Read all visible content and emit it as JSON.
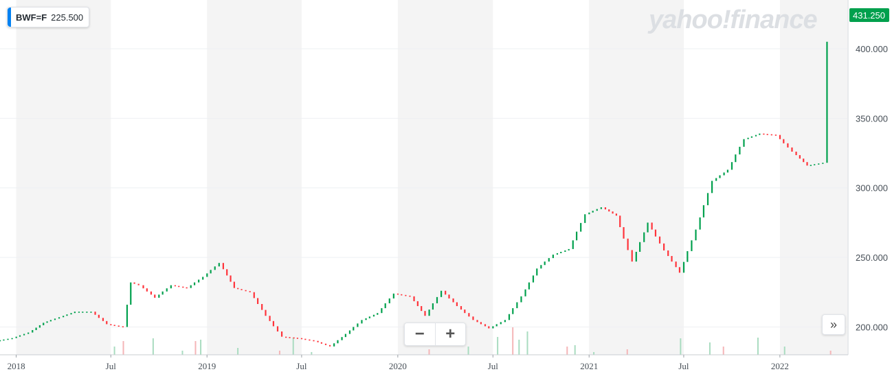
{
  "ticker": {
    "symbol": "BWF=F",
    "value": "225.500"
  },
  "watermark": "yahoo!finance",
  "last_price_label": "431.250",
  "zoom": {
    "minus": "−",
    "plus": "+"
  },
  "scroll_icon": "»",
  "colors": {
    "up": "#00a04d",
    "down": "#ff333a",
    "grid": "#eef0f3",
    "band": "#f4f4f4",
    "accent": "#0081f2"
  },
  "chart_data": {
    "type": "candlestick",
    "ylim": [
      180,
      435
    ],
    "yticks": [
      200,
      250,
      300,
      350,
      400
    ],
    "ytick_labels": [
      "200.000",
      "250.000",
      "300.000",
      "350.000",
      "400.000"
    ],
    "x_start": "2017-12-01",
    "x_end": "2022-05-10",
    "xticks": [
      {
        "date": "2018-01-01",
        "label": "2018"
      },
      {
        "date": "2018-07-01",
        "label": "Jul"
      },
      {
        "date": "2019-01-01",
        "label": "2019"
      },
      {
        "date": "2019-07-01",
        "label": "Jul"
      },
      {
        "date": "2020-01-01",
        "label": "2020"
      },
      {
        "date": "2020-07-01",
        "label": "Jul"
      },
      {
        "date": "2021-01-01",
        "label": "2021"
      },
      {
        "date": "2021-07-01",
        "label": "Jul"
      },
      {
        "date": "2022-01-01",
        "label": "2022"
      }
    ],
    "close_series": [
      [
        "2017-12-01",
        190
      ],
      [
        "2018-01-01",
        192
      ],
      [
        "2018-02-01",
        196
      ],
      [
        "2018-03-01",
        203
      ],
      [
        "2018-04-01",
        207
      ],
      [
        "2018-05-01",
        211
      ],
      [
        "2018-06-01",
        211
      ],
      [
        "2018-07-01",
        202
      ],
      [
        "2018-08-01",
        200
      ],
      [
        "2018-08-15",
        232
      ],
      [
        "2018-09-01",
        230
      ],
      [
        "2018-10-01",
        221
      ],
      [
        "2018-11-01",
        230
      ],
      [
        "2018-12-01",
        228
      ],
      [
        "2019-01-01",
        236
      ],
      [
        "2019-02-01",
        246
      ],
      [
        "2019-03-01",
        228
      ],
      [
        "2019-04-01",
        225
      ],
      [
        "2019-05-01",
        208
      ],
      [
        "2019-06-01",
        193
      ],
      [
        "2019-07-01",
        192
      ],
      [
        "2019-08-01",
        190
      ],
      [
        "2019-09-01",
        186
      ],
      [
        "2019-10-01",
        195
      ],
      [
        "2019-11-01",
        205
      ],
      [
        "2019-12-01",
        210
      ],
      [
        "2020-01-01",
        224
      ],
      [
        "2020-02-01",
        222
      ],
      [
        "2020-03-01",
        208
      ],
      [
        "2020-04-01",
        226
      ],
      [
        "2020-05-01",
        215
      ],
      [
        "2020-06-01",
        205
      ],
      [
        "2020-07-01",
        199
      ],
      [
        "2020-08-01",
        205
      ],
      [
        "2020-09-01",
        222
      ],
      [
        "2020-10-01",
        242
      ],
      [
        "2020-11-01",
        252
      ],
      [
        "2020-12-01",
        256
      ],
      [
        "2021-01-01",
        281
      ],
      [
        "2021-02-01",
        286
      ],
      [
        "2021-03-01",
        280
      ],
      [
        "2021-04-01",
        247
      ],
      [
        "2021-05-01",
        275
      ],
      [
        "2021-06-01",
        255
      ],
      [
        "2021-07-01",
        239
      ],
      [
        "2021-08-01",
        270
      ],
      [
        "2021-09-01",
        305
      ],
      [
        "2021-10-01",
        313
      ],
      [
        "2021-11-01",
        335
      ],
      [
        "2021-12-01",
        339
      ],
      [
        "2022-01-01",
        338
      ],
      [
        "2022-02-01",
        326
      ],
      [
        "2022-03-01",
        316
      ],
      [
        "2022-04-01",
        318
      ],
      [
        "2022-04-10",
        405
      ]
    ],
    "volume_series": [
      [
        "2018-07-08",
        12
      ],
      [
        "2018-07-25",
        20
      ],
      [
        "2018-09-20",
        24
      ],
      [
        "2018-11-15",
        6
      ],
      [
        "2018-12-10",
        20
      ],
      [
        "2018-12-20",
        22
      ],
      [
        "2019-03-01",
        10
      ],
      [
        "2019-05-20",
        6
      ],
      [
        "2019-06-15",
        25
      ],
      [
        "2019-07-20",
        4
      ],
      [
        "2020-03-01",
        8
      ],
      [
        "2020-05-15",
        12
      ],
      [
        "2020-07-10",
        26
      ],
      [
        "2020-08-08",
        40
      ],
      [
        "2020-08-20",
        22
      ],
      [
        "2020-09-05",
        34
      ],
      [
        "2020-11-20",
        12
      ],
      [
        "2020-12-05",
        14
      ],
      [
        "2021-01-10",
        4
      ],
      [
        "2021-03-15",
        8
      ],
      [
        "2021-06-25",
        24
      ],
      [
        "2021-08-20",
        18
      ],
      [
        "2021-09-15",
        12
      ],
      [
        "2021-11-20",
        25
      ],
      [
        "2022-01-10",
        12
      ],
      [
        "2022-04-08",
        6
      ]
    ]
  }
}
